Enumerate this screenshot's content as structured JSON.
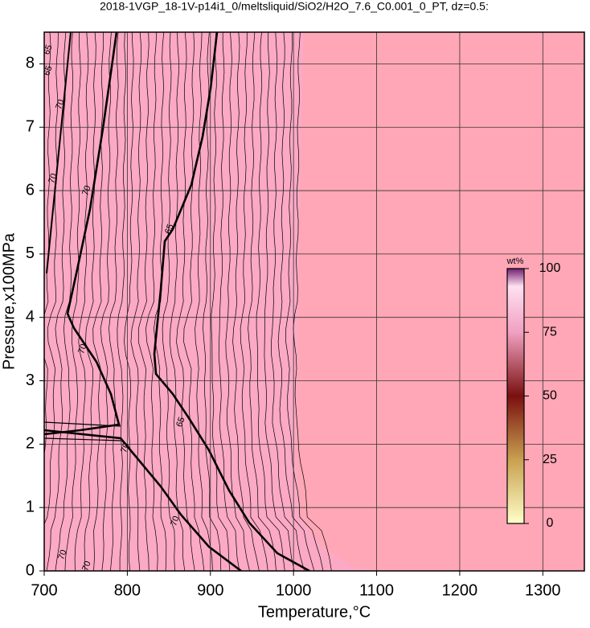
{
  "chart_data": {
    "type": "contour",
    "title": "2018-1VGP_18-1V-p14i1_0/meltsliquid/SiO2/H2O_7.6_C0.001_0_PT, dz=0.5:",
    "x_label": "Temperature,°C",
    "y_label": "Pressure,x100MPa",
    "xlim": [
      700,
      1350
    ],
    "xticks": [
      700,
      800,
      900,
      1000,
      1100,
      1200,
      1300
    ],
    "ylim": [
      0,
      8.5
    ],
    "yticks": [
      0,
      1,
      2,
      3,
      4,
      5,
      6,
      7,
      8
    ],
    "grid": true,
    "contour_levels": [
      65,
      70
    ],
    "colorbar": {
      "label": "wt%",
      "lim": [
        0,
        100
      ],
      "ticks": [
        0,
        25,
        50,
        75,
        100
      ]
    }
  }
}
